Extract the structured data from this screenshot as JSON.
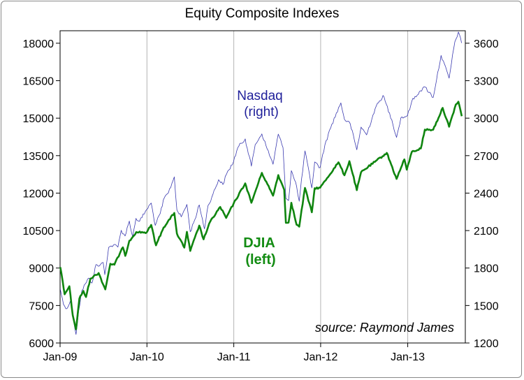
{
  "chart_data": {
    "type": "line",
    "title": "Equity Composite Indexes",
    "source": "source: Raymond James",
    "x_tick_labels": [
      "Jan-09",
      "Jan-10",
      "Jan-11",
      "Jan-12",
      "Jan-13"
    ],
    "x_range": [
      "2009-01",
      "2013-08"
    ],
    "y_left": {
      "ticks": [
        "6000",
        "7500",
        "9000",
        "10500",
        "12000",
        "13500",
        "15000",
        "16500",
        "18000"
      ],
      "range": [
        6000,
        18500
      ]
    },
    "y_right": {
      "ticks": [
        "1200",
        "1500",
        "1800",
        "2100",
        "2400",
        "2700",
        "3000",
        "3300",
        "3600"
      ],
      "range": [
        1200,
        3700
      ]
    },
    "grid": "vertical at x ticks",
    "legend": "inline labels",
    "series": [
      {
        "name": "Nasdaq",
        "label_lines": [
          "Nasdaq",
          "(right)"
        ],
        "axis": "right",
        "color": "#3a3ab0",
        "points": [
          [
            "2009-01-02",
            1632
          ],
          [
            "2009-01-15",
            1510
          ],
          [
            "2009-01-30",
            1476
          ],
          [
            "2009-02-13",
            1534
          ],
          [
            "2009-02-27",
            1378
          ],
          [
            "2009-03-09",
            1268
          ],
          [
            "2009-03-20",
            1457
          ],
          [
            "2009-04-03",
            1621
          ],
          [
            "2009-04-17",
            1673
          ],
          [
            "2009-05-01",
            1719
          ],
          [
            "2009-05-15",
            1680
          ],
          [
            "2009-06-01",
            1828
          ],
          [
            "2009-06-15",
            1817
          ],
          [
            "2009-07-01",
            1845
          ],
          [
            "2009-07-08",
            1747
          ],
          [
            "2009-07-24",
            1965
          ],
          [
            "2009-08-14",
            1985
          ],
          [
            "2009-09-01",
            1968
          ],
          [
            "2009-09-15",
            2102
          ],
          [
            "2009-10-01",
            2057
          ],
          [
            "2009-10-19",
            2176
          ],
          [
            "2009-11-02",
            2050
          ],
          [
            "2009-11-16",
            2197
          ],
          [
            "2009-12-01",
            2175
          ],
          [
            "2009-12-31",
            2269
          ],
          [
            "2010-01-19",
            2320
          ],
          [
            "2010-02-05",
            2141
          ],
          [
            "2010-02-26",
            2238
          ],
          [
            "2010-03-15",
            2362
          ],
          [
            "2010-04-01",
            2402
          ],
          [
            "2010-04-26",
            2530
          ],
          [
            "2010-05-07",
            2265
          ],
          [
            "2010-05-25",
            2210
          ],
          [
            "2010-06-18",
            2309
          ],
          [
            "2010-07-02",
            2091
          ],
          [
            "2010-07-21",
            2187
          ],
          [
            "2010-08-09",
            2305
          ],
          [
            "2010-08-31",
            2114
          ],
          [
            "2010-09-15",
            2301
          ],
          [
            "2010-10-01",
            2370
          ],
          [
            "2010-10-29",
            2507
          ],
          [
            "2010-11-16",
            2469
          ],
          [
            "2010-12-01",
            2550
          ],
          [
            "2010-12-31",
            2653
          ],
          [
            "2011-01-18",
            2765
          ],
          [
            "2011-02-18",
            2834
          ],
          [
            "2011-03-16",
            2616
          ],
          [
            "2011-04-01",
            2789
          ],
          [
            "2011-04-29",
            2874
          ],
          [
            "2011-05-16",
            2782
          ],
          [
            "2011-06-15",
            2631
          ],
          [
            "2011-07-07",
            2872
          ],
          [
            "2011-07-27",
            2764
          ],
          [
            "2011-08-08",
            2358
          ],
          [
            "2011-08-19",
            2341
          ],
          [
            "2011-08-31",
            2580
          ],
          [
            "2011-09-22",
            2455
          ],
          [
            "2011-10-03",
            2335
          ],
          [
            "2011-10-27",
            2738
          ],
          [
            "2011-11-25",
            2441
          ],
          [
            "2011-12-07",
            2649
          ],
          [
            "2011-12-30",
            2605
          ],
          [
            "2012-01-19",
            2788
          ],
          [
            "2012-02-17",
            2951
          ],
          [
            "2012-03-26",
            3122
          ],
          [
            "2012-04-10",
            2991
          ],
          [
            "2012-05-04",
            2956
          ],
          [
            "2012-06-01",
            2747
          ],
          [
            "2012-06-19",
            2929
          ],
          [
            "2012-07-12",
            2866
          ],
          [
            "2012-08-17",
            3076
          ],
          [
            "2012-09-19",
            3182
          ],
          [
            "2012-10-26",
            2987
          ],
          [
            "2012-11-15",
            2846
          ],
          [
            "2012-12-03",
            3002
          ],
          [
            "2012-12-31",
            3020
          ],
          [
            "2013-01-18",
            3135
          ],
          [
            "2013-02-19",
            3213
          ],
          [
            "2013-03-15",
            3249
          ],
          [
            "2013-04-18",
            3166
          ],
          [
            "2013-05-21",
            3502
          ],
          [
            "2013-06-24",
            3320
          ],
          [
            "2013-07-18",
            3611
          ],
          [
            "2013-08-02",
            3690
          ],
          [
            "2013-08-15",
            3602
          ]
        ]
      },
      {
        "name": "DJIA",
        "label_lines": [
          "DJIA",
          "(left)"
        ],
        "axis": "left",
        "color": "#0f850f",
        "points": [
          [
            "2009-01-02",
            9034
          ],
          [
            "2009-01-12",
            8473
          ],
          [
            "2009-01-20",
            7949
          ],
          [
            "2009-02-09",
            8270
          ],
          [
            "2009-02-23",
            7114
          ],
          [
            "2009-03-09",
            6547
          ],
          [
            "2009-03-23",
            7776
          ],
          [
            "2009-04-09",
            8083
          ],
          [
            "2009-04-20",
            7841
          ],
          [
            "2009-05-08",
            8575
          ],
          [
            "2009-06-12",
            8799
          ],
          [
            "2009-07-10",
            8146
          ],
          [
            "2009-07-31",
            9171
          ],
          [
            "2009-08-17",
            9135
          ],
          [
            "2009-09-22",
            9829
          ],
          [
            "2009-10-02",
            9487
          ],
          [
            "2009-10-19",
            10092
          ],
          [
            "2009-11-17",
            10437
          ],
          [
            "2009-12-31",
            10428
          ],
          [
            "2010-01-19",
            10725
          ],
          [
            "2010-02-08",
            9908
          ],
          [
            "2010-03-12",
            10625
          ],
          [
            "2010-04-26",
            11205
          ],
          [
            "2010-05-07",
            10380
          ],
          [
            "2010-06-07",
            9816
          ],
          [
            "2010-06-18",
            10450
          ],
          [
            "2010-07-02",
            9686
          ],
          [
            "2010-08-09",
            10698
          ],
          [
            "2010-08-27",
            10150
          ],
          [
            "2010-09-24",
            10860
          ],
          [
            "2010-11-05",
            11444
          ],
          [
            "2010-11-30",
            11006
          ],
          [
            "2010-12-31",
            11577
          ],
          [
            "2011-02-18",
            12391
          ],
          [
            "2011-03-16",
            11613
          ],
          [
            "2011-04-29",
            12810
          ],
          [
            "2011-06-15",
            11897
          ],
          [
            "2011-07-07",
            12719
          ],
          [
            "2011-08-01",
            12132
          ],
          [
            "2011-08-08",
            10809
          ],
          [
            "2011-08-19",
            10817
          ],
          [
            "2011-08-31",
            11613
          ],
          [
            "2011-09-22",
            10733
          ],
          [
            "2011-10-03",
            10655
          ],
          [
            "2011-10-27",
            12208
          ],
          [
            "2011-11-25",
            11231
          ],
          [
            "2011-12-07",
            12196
          ],
          [
            "2011-12-30",
            12217
          ],
          [
            "2012-03-16",
            13232
          ],
          [
            "2012-04-10",
            12715
          ],
          [
            "2012-05-01",
            13279
          ],
          [
            "2012-06-01",
            12118
          ],
          [
            "2012-06-19",
            12837
          ],
          [
            "2012-08-16",
            13250
          ],
          [
            "2012-10-05",
            13610
          ],
          [
            "2012-11-15",
            12570
          ],
          [
            "2012-12-18",
            13350
          ],
          [
            "2012-12-28",
            12938
          ],
          [
            "2013-01-18",
            13649
          ],
          [
            "2013-02-25",
            13784
          ],
          [
            "2013-03-14",
            14539
          ],
          [
            "2013-04-18",
            14537
          ],
          [
            "2013-05-28",
            15409
          ],
          [
            "2013-06-24",
            14659
          ],
          [
            "2013-07-22",
            15545
          ],
          [
            "2013-08-02",
            15658
          ],
          [
            "2013-08-16",
            15081
          ]
        ]
      }
    ]
  }
}
